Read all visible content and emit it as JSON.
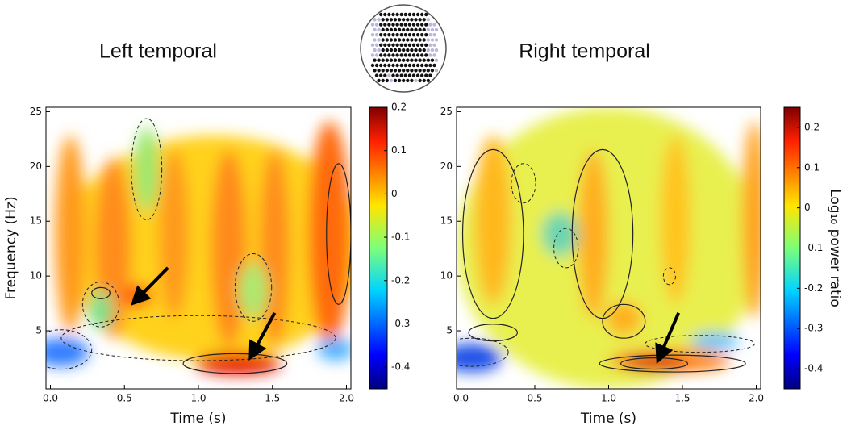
{
  "chart_data": [
    {
      "type": "heatmap",
      "title": "Left temporal",
      "xlabel": "Time (s)",
      "ylabel": "Frequency (Hz)",
      "xlim": [
        -0.03,
        2.03
      ],
      "xticks": [
        {
          "value": 0,
          "label": "0.0"
        },
        {
          "value": 0.5,
          "label": "0.5"
        },
        {
          "value": 1,
          "label": "1.0"
        },
        {
          "value": 1.5,
          "label": "1.5"
        },
        {
          "value": 2,
          "label": "2.0"
        }
      ],
      "ylim": [
        -0.3,
        25.4
      ],
      "yticks": [
        5,
        10,
        15,
        20,
        25
      ],
      "zlim": [
        -0.45,
        0.2
      ],
      "zticks": [
        0.2,
        0.1,
        0,
        -0.1,
        -0.2,
        -0.3,
        -0.4
      ]
    },
    {
      "type": "heatmap",
      "title": "Right temporal",
      "xlabel": "Time (s)",
      "zlabel": "Log₁₀ power ratio",
      "xlim": [
        -0.03,
        2.03
      ],
      "xticks": [
        {
          "value": 0,
          "label": "0.0"
        },
        {
          "value": 0.5,
          "label": "0.5"
        },
        {
          "value": 1,
          "label": "1.0"
        },
        {
          "value": 1.5,
          "label": "1.5"
        },
        {
          "value": 2,
          "label": "2.0"
        }
      ],
      "ylim": [
        -0.3,
        25.4
      ],
      "yticks": [
        5,
        10,
        15,
        20,
        25
      ],
      "zlim": [
        -0.45,
        0.25
      ],
      "zticks": [
        0.2,
        0.1,
        0,
        -0.1,
        -0.2,
        -0.3,
        -0.4
      ]
    }
  ]
}
